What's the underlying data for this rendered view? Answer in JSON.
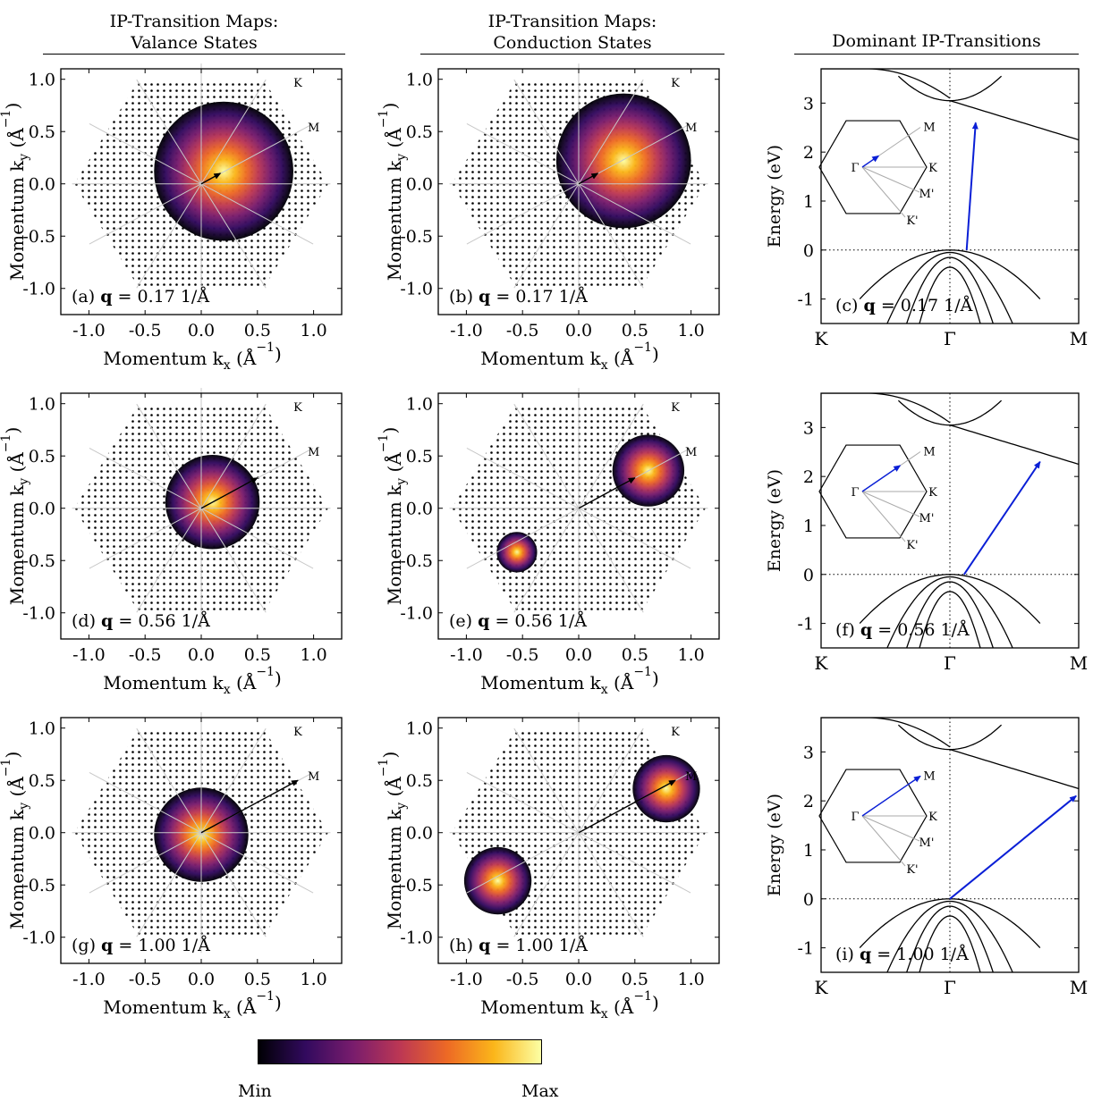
{
  "columns": [
    {
      "title_line1": "IP-Transition Maps:",
      "title_line2": "Valance States"
    },
    {
      "title_line1": "IP-Transition Maps:",
      "title_line2": "Conduction States"
    },
    {
      "title_line1": "Dominant IP-Transitions",
      "title_line2": ""
    }
  ],
  "maps": {
    "xlabel": "Momentum k",
    "xlabel_sub": "x",
    "ylabel": "Momentum k",
    "ylabel_sub": "y",
    "unit": "(Å",
    "unit_exp": "−1",
    "unit_close": ")",
    "xticks": [
      "-1.0",
      "-0.5",
      "0.0",
      "0.5",
      "1.0"
    ],
    "xtick_values": [
      -1.0,
      -0.5,
      0.0,
      0.5,
      1.0
    ],
    "yticks": [
      "1.0",
      "0.5",
      "0.0",
      "-0.5",
      "-1.0"
    ],
    "ytick_values": [
      1.0,
      0.5,
      0.0,
      -0.5,
      -1.0
    ],
    "xlim": [
      -1.25,
      1.25
    ],
    "ylim": [
      -1.25,
      1.1
    ],
    "label_K": "K",
    "label_M": "M",
    "panels": [
      {
        "id": "a",
        "tag": "(a)",
        "q_symbol": "q",
        "q_text": "= 0.17 1/Å",
        "q": 0.17,
        "blobs": [
          {
            "x": 0.2,
            "y": 0.12,
            "r": 0.62,
            "peak": 1.0
          }
        ],
        "arrow": [
          0.17,
          0.1
        ]
      },
      {
        "id": "b",
        "tag": "(b)",
        "q_symbol": "q",
        "q_text": "= 0.17 1/Å",
        "q": 0.17,
        "blobs": [
          {
            "x": 0.4,
            "y": 0.22,
            "r": 0.6,
            "peak": 1.0
          }
        ],
        "arrow": [
          0.17,
          0.1
        ]
      },
      {
        "id": "d",
        "tag": "(d)",
        "q_symbol": "q",
        "q_text": "= 0.56 1/Å",
        "q": 0.56,
        "blobs": [
          {
            "x": 0.1,
            "y": 0.06,
            "r": 0.42,
            "peak": 0.95
          }
        ],
        "arrow": [
          0.5,
          0.29
        ]
      },
      {
        "id": "e",
        "tag": "(e)",
        "q_symbol": "q",
        "q_text": "= 0.56 1/Å",
        "q": 0.56,
        "blobs": [
          {
            "x": 0.62,
            "y": 0.36,
            "r": 0.32,
            "peak": 1.0
          },
          {
            "x": -0.55,
            "y": -0.42,
            "r": 0.18,
            "peak": 0.7
          }
        ],
        "arrow": [
          0.5,
          0.29
        ]
      },
      {
        "id": "g",
        "tag": "(g)",
        "q_symbol": "q",
        "q_text": "= 1.00 1/Å",
        "q": 1.0,
        "blobs": [
          {
            "x": 0.0,
            "y": -0.02,
            "r": 0.42,
            "peak": 1.0
          }
        ],
        "arrow": [
          0.86,
          0.5
        ]
      },
      {
        "id": "h",
        "tag": "(h)",
        "q_symbol": "q",
        "q_text": "= 1.00 1/Å",
        "q": 1.0,
        "blobs": [
          {
            "x": 0.78,
            "y": 0.42,
            "r": 0.3,
            "peak": 1.0
          },
          {
            "x": -0.72,
            "y": -0.46,
            "r": 0.3,
            "peak": 1.0
          }
        ],
        "arrow": [
          0.86,
          0.5
        ]
      }
    ]
  },
  "bands": {
    "ylabel": "Energy (eV)",
    "yticks": [
      "3",
      "2",
      "1",
      "0",
      "-1"
    ],
    "ytick_values": [
      3,
      2,
      1,
      0,
      -1
    ],
    "ylim": [
      -1.5,
      3.7
    ],
    "xticks": [
      "K",
      "Γ",
      "M"
    ],
    "inset_labels": {
      "gamma": "Γ",
      "K": "K",
      "M": "M",
      "Mp": "M'",
      "Kp": "K'"
    },
    "panels": [
      {
        "id": "c",
        "tag": "(c)",
        "q_symbol": "q",
        "q_text": "= 0.17 1/Å",
        "q": 0.17,
        "transition": {
          "x_start": 0.13,
          "e_start": 0.0,
          "x_end": 0.2,
          "e_end": 2.6
        }
      },
      {
        "id": "f",
        "tag": "(f)",
        "q_symbol": "q",
        "q_text": "= 0.56 1/Å",
        "q": 0.56,
        "transition": {
          "x_start": 0.11,
          "e_start": 0.0,
          "x_end": 0.7,
          "e_end": 2.3
        }
      },
      {
        "id": "i",
        "tag": "(i)",
        "q_symbol": "q",
        "q_text": "= 1.00 1/Å",
        "q": 1.0,
        "transition": {
          "x_start": 0.0,
          "e_start": 0.0,
          "x_end": 0.98,
          "e_end": 2.1
        }
      }
    ]
  },
  "colorbar": {
    "min_label": "Min",
    "max_label": "Max",
    "colors": [
      "#000004",
      "#320a5e",
      "#781c6d",
      "#bc3754",
      "#ed6925",
      "#fbb61a",
      "#fcffa4"
    ]
  }
}
